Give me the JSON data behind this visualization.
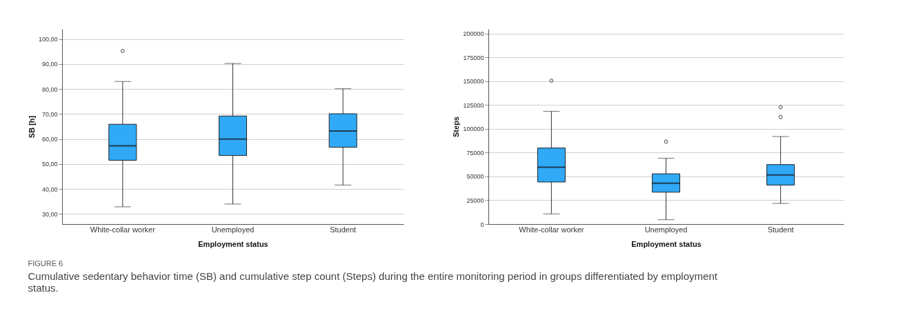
{
  "chart_data": [
    {
      "type": "box",
      "xlabel": "Employment status",
      "ylabel": "SB [h]",
      "categories": [
        "White-collar worker",
        "Unemployed",
        "Student"
      ],
      "series": [
        {
          "color": "#30a9f6",
          "boxes": [
            {
              "low": 32.9,
              "q1": 51.5,
              "median": 57.3,
              "q3": 65.9,
              "high": 83.0,
              "outliers": [
                95.2
              ]
            },
            {
              "low": 34.0,
              "q1": 53.4,
              "median": 60.0,
              "q3": 69.2,
              "high": 90.2
            },
            {
              "low": 41.6,
              "q1": 56.7,
              "median": 63.2,
              "q3": 70.1,
              "high": 80.1
            }
          ]
        }
      ],
      "ylim": [
        26,
        104
      ],
      "yticks": [
        {
          "value": 30,
          "label": "30,00"
        },
        {
          "value": 40,
          "label": "40,00"
        },
        {
          "value": 50,
          "label": "50,00"
        },
        {
          "value": 60,
          "label": "60,00"
        },
        {
          "value": 70,
          "label": "70,00"
        },
        {
          "value": 80,
          "label": "80,00"
        },
        {
          "value": 90,
          "label": "90,00"
        },
        {
          "value": 100,
          "label": "100,00"
        }
      ],
      "grid": "y",
      "annotations": [
        "FIGURE 6",
        "Cumulative sedentary behavior time (SB) and cumulative step count (Steps) during the entire monitoring period in groups differentiated by employment status."
      ]
    },
    {
      "type": "box",
      "xlabel": "Employment status",
      "ylabel": "Steps",
      "categories": [
        "White-collar worker",
        "Unemployed",
        "Student"
      ],
      "series": [
        {
          "color": "#30a9f6",
          "boxes": [
            {
              "low": 10700,
              "q1": 44200,
              "median": 59800,
              "q3": 79900,
              "high": 118500,
              "outliers": [
                150700
              ]
            },
            {
              "low": 4600,
              "q1": 33500,
              "median": 42900,
              "q3": 52800,
              "high": 69200,
              "outliers": [
                86600
              ]
            },
            {
              "low": 21700,
              "q1": 41000,
              "median": 51700,
              "q3": 62500,
              "high": 92000,
              "outliers": [
                112600,
                122800
              ]
            }
          ]
        }
      ],
      "ylim": [
        0,
        205000
      ],
      "yticks": [
        0,
        25000,
        50000,
        75000,
        100000,
        125000,
        150000,
        175000,
        200000
      ],
      "grid": "y"
    }
  ]
}
